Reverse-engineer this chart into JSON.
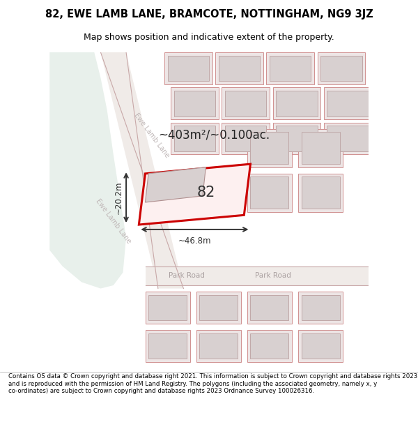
{
  "title_line1": "82, EWE LAMB LANE, BRAMCOTE, NOTTINGHAM, NG9 3JZ",
  "title_line2": "Map shows position and indicative extent of the property.",
  "footer_text": "Contains OS data © Crown copyright and database right 2021. This information is subject to Crown copyright and database rights 2023 and is reproduced with the permission of HM Land Registry. The polygons (including the associated geometry, namely x, y co-ordinates) are subject to Crown copyright and database rights 2023 Ordnance Survey 100026316.",
  "bg_color": "#ffffff",
  "map_bg_color": "#f5f5f5",
  "green_area_color": "#e8f0eb",
  "plot_outline_color": "#cc0000",
  "area_text": "~403m²/~0.100ac.",
  "width_text": "~46.8m",
  "height_text": "~20.2m",
  "label_82": "82",
  "road_label_1": "Park Road",
  "road_label_2": "Park Road",
  "street_label_1": "Ewe Lamb Lane",
  "street_label_2": "Ewe Lamb Lane"
}
